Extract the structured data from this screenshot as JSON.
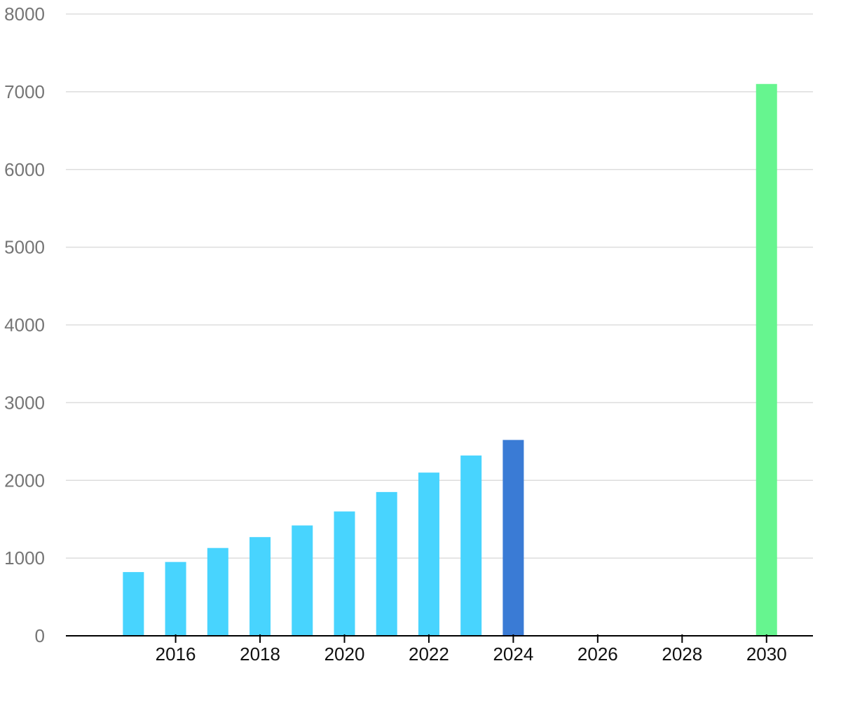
{
  "chart_data": {
    "type": "bar",
    "title": "",
    "xlabel": "",
    "ylabel": "",
    "x": [
      2015,
      2016,
      2017,
      2018,
      2019,
      2020,
      2021,
      2022,
      2023,
      2024,
      2030
    ],
    "values": [
      820,
      950,
      1130,
      1270,
      1420,
      1600,
      1850,
      2100,
      2320,
      2520,
      7100
    ],
    "bar_colors": [
      "#48d4fe",
      "#48d4fe",
      "#48d4fe",
      "#48d4fe",
      "#48d4fe",
      "#48d4fe",
      "#48d4fe",
      "#48d4fe",
      "#48d4fe",
      "#3a7bd5",
      "#66f58f"
    ],
    "xlim": [
      2013.4,
      2031.1
    ],
    "ylim": [
      0,
      8000
    ],
    "x_ticks": [
      2016,
      2018,
      2020,
      2022,
      2024,
      2026,
      2028,
      2030
    ],
    "x_tick_labels": [
      "2016",
      "2018",
      "2020",
      "2022",
      "2024",
      "2026",
      "2028",
      "2030"
    ],
    "y_ticks": [
      0,
      1000,
      2000,
      3000,
      4000,
      5000,
      6000,
      7000,
      8000
    ],
    "y_tick_labels": [
      "0",
      "1000",
      "2000",
      "3000",
      "4000",
      "5000",
      "6000",
      "7000",
      "8000"
    ],
    "grid": true,
    "legend": "none"
  }
}
